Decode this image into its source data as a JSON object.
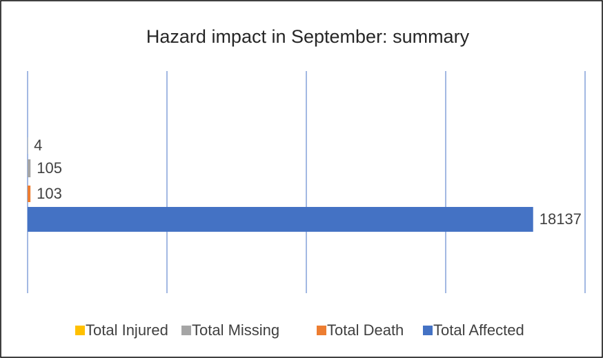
{
  "chart_data": {
    "type": "bar",
    "horizontal": true,
    "title": "Hazard impact in September: summary",
    "series": [
      {
        "name": "Total Injured",
        "color": "#ffc000",
        "values": [
          4
        ]
      },
      {
        "name": "Total Missing",
        "color": "#a5a5a5",
        "values": [
          105
        ]
      },
      {
        "name": "Total Death",
        "color": "#ed7d31",
        "values": [
          103
        ]
      },
      {
        "name": "Total Affected",
        "color": "#4472c4",
        "values": [
          18137
        ]
      }
    ],
    "xlim": [
      0,
      20000
    ],
    "xticks": [
      0,
      5000,
      10000,
      15000,
      20000
    ],
    "grid": true,
    "grid_color": "#4472c4",
    "legend": "bottom"
  }
}
